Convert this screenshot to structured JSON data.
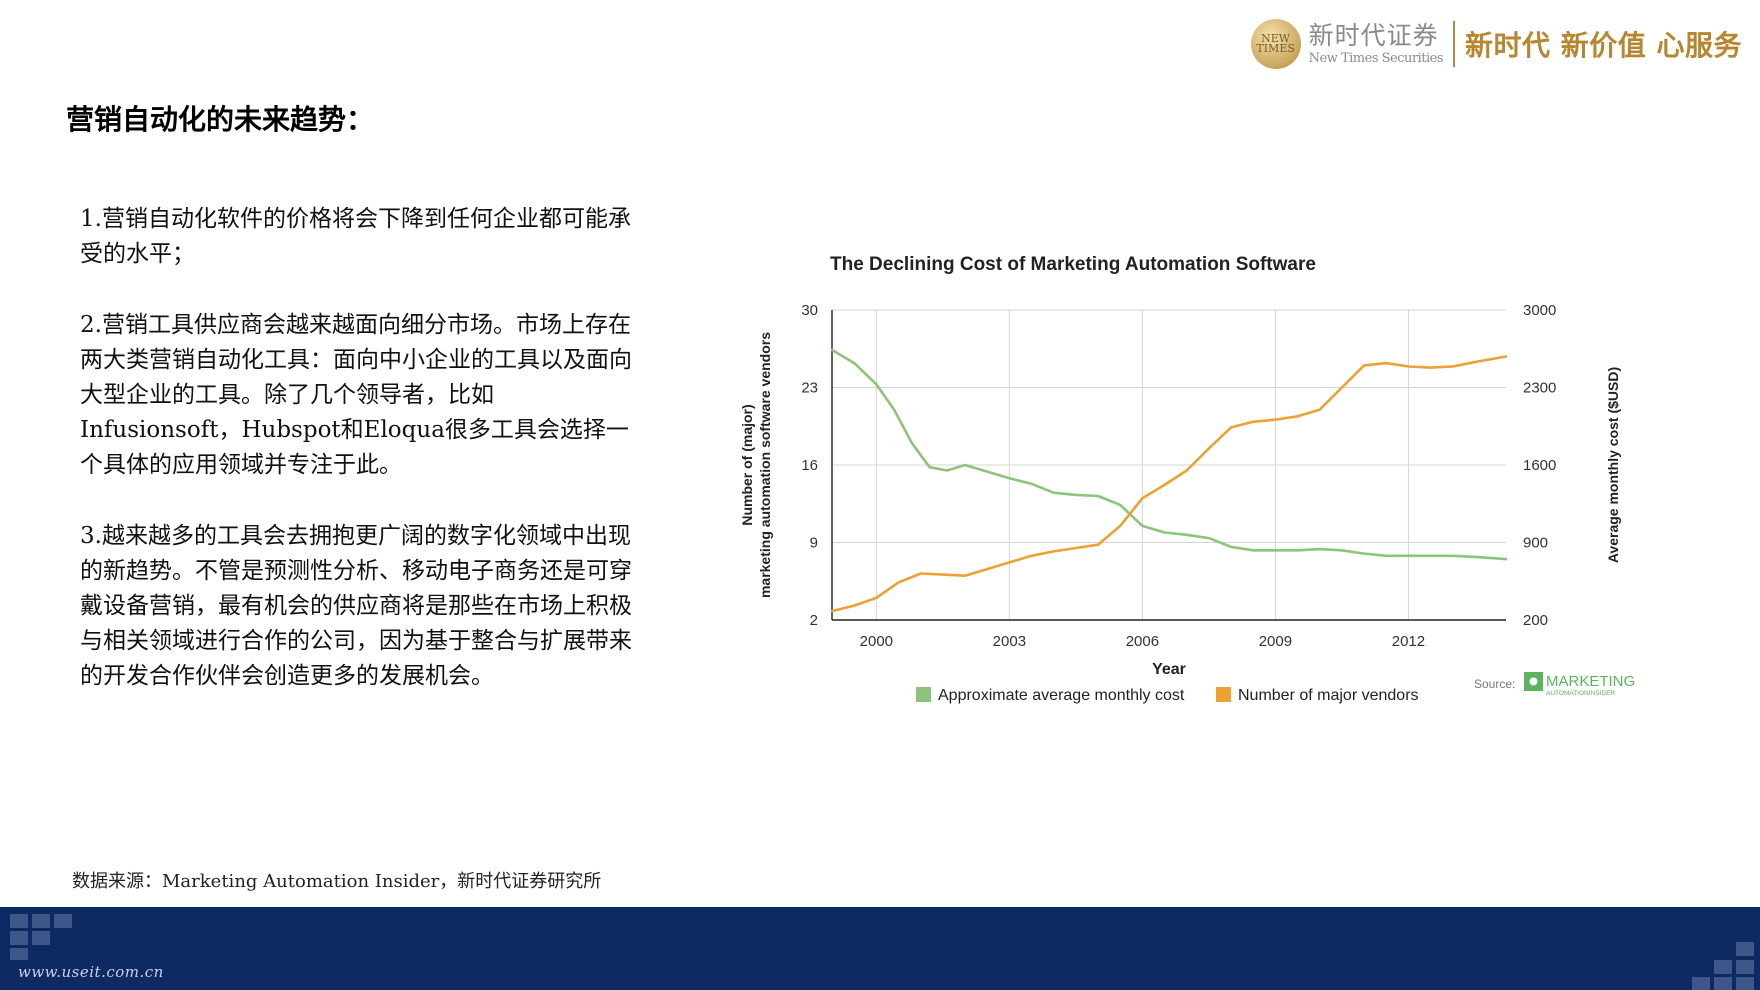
{
  "header": {
    "logo_mark": "NEW TIMES",
    "logo_cn": "新时代证券",
    "logo_en": "New Times Securities",
    "slogan": "新时代 新价值 心服务"
  },
  "title": "营销自动化的未来趋势：",
  "paragraphs": [
    "1.营销自动化软件的价格将会下降到任何企业都可能承受的水平；",
    "2.营销工具供应商会越来越面向细分市场。市场上存在两大类营销自动化工具：面向中小企业的工具以及面向大型企业的工具。除了几个领导者，比如Infusionsoft，Hubspot和Eloqua很多工具会选择一个具体的应用领域并专注于此。",
    "3.越来越多的工具会去拥抱更广阔的数字化领域中出现的新趋势。不管是预测性分析、移动电子商务还是可穿戴设备营销，最有机会的供应商将是那些在市场上积极与相关领域进行合作的公司，因为基于整合与扩展带来的开发合作伙伴会创造更多的发展机会。"
  ],
  "source_note": "数据来源：Marketing Automation Insider，新时代证券研究所",
  "footer": {
    "url": "www.useit.com.cn"
  },
  "chart_data": {
    "type": "line",
    "title": "The Declining Cost of Marketing Automation Software",
    "xlabel": "Year",
    "ylabel_left": "Number of (major) marketing automation software vendors",
    "ylabel_right": "Average monthly cost ($USD)",
    "xlim": [
      1999,
      2014.2
    ],
    "x_ticks": [
      2000,
      2003,
      2006,
      2009,
      2012
    ],
    "ylim_left": [
      2,
      30
    ],
    "y_ticks_left": [
      2,
      9,
      16,
      23,
      30
    ],
    "ylim_right": [
      200,
      3000
    ],
    "y_ticks_right": [
      200,
      900,
      1600,
      2300,
      3000
    ],
    "grid": true,
    "legend_position": "bottom",
    "series": [
      {
        "name": "Approximate average monthly cost",
        "axis": "right",
        "color": "#8cc47a",
        "x": [
          1999,
          1999.5,
          2000,
          2000.4,
          2000.8,
          2001.2,
          2001.6,
          2002,
          2002.5,
          2003,
          2003.5,
          2004,
          2004.5,
          2005,
          2005.5,
          2006,
          2006.5,
          2007,
          2007.5,
          2008,
          2008.5,
          2009,
          2009.5,
          2010,
          2010.5,
          2011,
          2011.5,
          2012,
          2012.5,
          2013,
          2013.5,
          2014.2
        ],
        "y": [
          2640,
          2520,
          2330,
          2100,
          1800,
          1580,
          1550,
          1600,
          1540,
          1480,
          1430,
          1350,
          1330,
          1320,
          1240,
          1050,
          990,
          970,
          940,
          860,
          830,
          830,
          830,
          840,
          830,
          800,
          780,
          780,
          780,
          780,
          770,
          750
        ]
      },
      {
        "name": "Number of major vendors",
        "axis": "left",
        "color": "#f0a030",
        "x": [
          1999,
          1999.5,
          2000,
          2000.5,
          2001,
          2001.5,
          2002,
          2002.5,
          2003,
          2003.5,
          2004,
          2004.5,
          2005,
          2005.5,
          2006,
          2006.5,
          2007,
          2007.5,
          2008,
          2008.5,
          2009,
          2009.5,
          2010,
          2010.5,
          2011,
          2011.5,
          2012,
          2012.5,
          2013,
          2013.5,
          2014.2
        ],
        "y": [
          2.8,
          3.3,
          4.0,
          5.4,
          6.2,
          6.1,
          6.0,
          6.6,
          7.2,
          7.8,
          8.2,
          8.5,
          8.8,
          10.5,
          13.0,
          14.2,
          15.5,
          17.5,
          19.4,
          19.9,
          20.1,
          20.4,
          21.0,
          23.0,
          25.0,
          25.2,
          24.9,
          24.8,
          24.9,
          25.3,
          25.8
        ]
      }
    ],
    "source_label": "Source:",
    "source_brand": "MARKETING",
    "source_brand_sub": "AUTOMATIONINSIDER"
  }
}
